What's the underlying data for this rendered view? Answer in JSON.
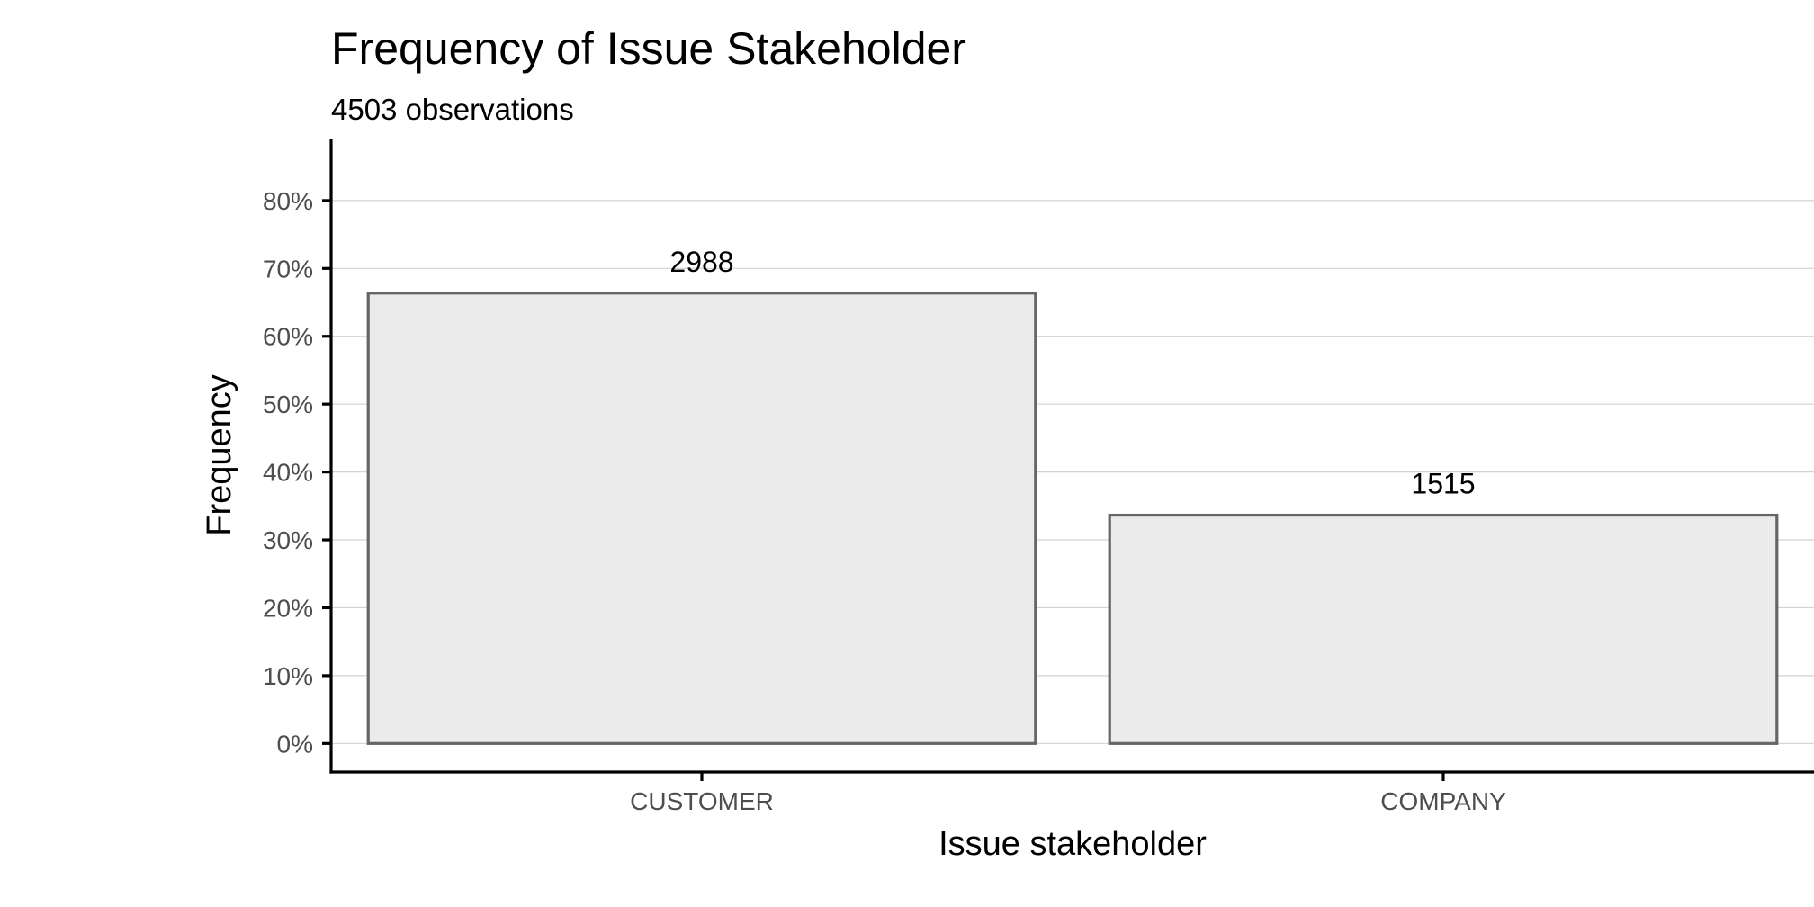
{
  "chart_data": {
    "type": "bar",
    "title": "Frequency of Issue Stakeholder",
    "subtitle": "4503 observations",
    "xlabel": "Issue stakeholder",
    "ylabel": "Frequency",
    "categories": [
      "CUSTOMER",
      "COMPANY"
    ],
    "values": [
      66.36,
      33.64
    ],
    "value_unit": "%",
    "data_labels": [
      "2988",
      "1515"
    ],
    "ylim": [
      -4.2,
      89
    ],
    "yticks": [
      0,
      10,
      20,
      30,
      40,
      50,
      60,
      70,
      80
    ],
    "ytick_labels": [
      "0%",
      "10%",
      "20%",
      "30%",
      "40%",
      "50%",
      "60%",
      "70%",
      "80%"
    ],
    "grid": "horizontal",
    "legend": "none",
    "colors": {
      "bar_fill": "#ebebeb",
      "bar_stroke": "#666666",
      "grid": "#d3d3d3"
    }
  }
}
